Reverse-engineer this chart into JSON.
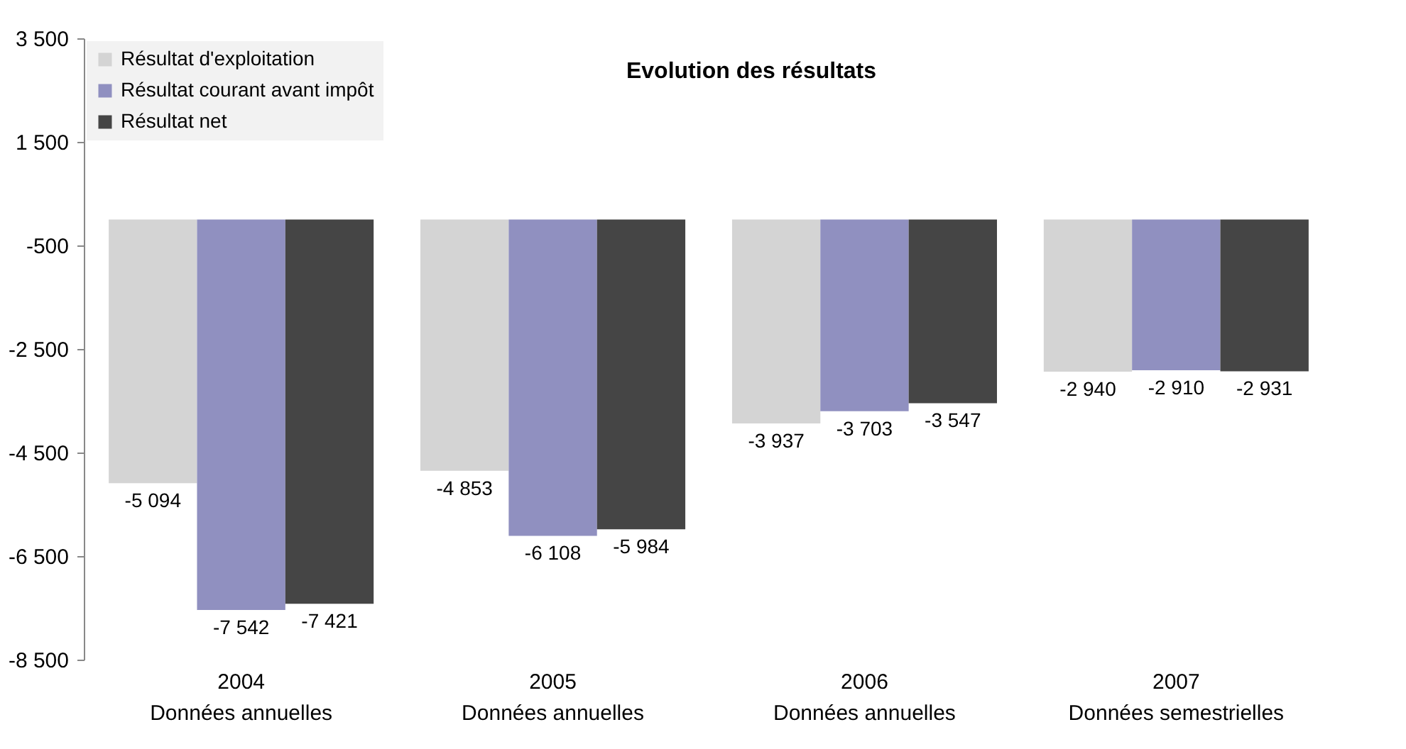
{
  "chart_data": {
    "type": "bar",
    "title": "Evolution des résultats",
    "categories": [
      "2004\nDonnées annuelles",
      "2005\nDonnées annuelles",
      "2006\nDonnées annuelles",
      "2007\nDonnées semestrielles"
    ],
    "series": [
      {
        "name": "Résultat d'exploitation",
        "color": "#d4d4d4",
        "values": [
          -5094,
          -4853,
          -3937,
          -2940
        ]
      },
      {
        "name": "Résultat courant avant impôt",
        "color": "#9090c0",
        "values": [
          -7542,
          -6108,
          -3703,
          -2910
        ]
      },
      {
        "name": "Résultat net",
        "color": "#454545",
        "values": [
          -7421,
          -5984,
          -3547,
          -2931
        ]
      }
    ],
    "ylim": [
      -8500,
      3500
    ],
    "yticks": [
      {
        "value": 3500,
        "label": "3 500"
      },
      {
        "value": 1500,
        "label": "1 500"
      },
      {
        "value": -500,
        "label": "-500"
      },
      {
        "value": -2500,
        "label": "-2 500"
      },
      {
        "value": -4500,
        "label": "-4 500"
      },
      {
        "value": -6500,
        "label": "-6 500"
      },
      {
        "value": -8500,
        "label": "-8 500"
      }
    ],
    "data_labels": true,
    "legend": "top left",
    "grid": false
  }
}
